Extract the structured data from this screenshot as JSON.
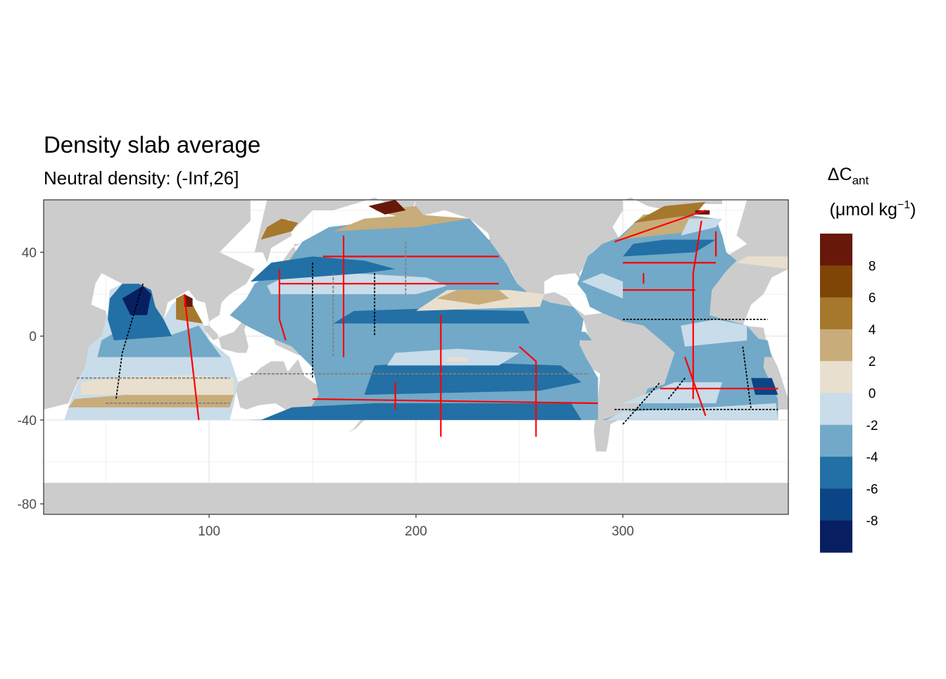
{
  "chart_data": {
    "type": "heatmap",
    "title": "Density slab average",
    "subtitle": "Neutral density: (-Inf,26]",
    "xlim": [
      20,
      380
    ],
    "ylim": [
      -85,
      65
    ],
    "x_ticks": [
      100,
      200,
      300
    ],
    "y_ticks": [
      40,
      0,
      -40,
      -80
    ],
    "grid": true,
    "colors": {
      "land": "#cccccc",
      "no_data": "#ffffff",
      "grid": "#ebebeb",
      "panel_border": "#333333",
      "track_red": "#ff0000",
      "track_black": "#000000",
      "track_grey": "#808080"
    },
    "legend": {
      "placement": "right",
      "title_main": "ΔC",
      "title_sub": "ant",
      "unit_prefix": "(μmol kg",
      "unit_exp": "−1",
      "unit_suffix": ")",
      "bins": [
        {
          "min": 8,
          "max": 10,
          "color": "#67180a"
        },
        {
          "min": 6,
          "max": 8,
          "color": "#7f4507"
        },
        {
          "min": 4,
          "max": 6,
          "color": "#a6782c"
        },
        {
          "min": 2,
          "max": 4,
          "color": "#c8ac7a"
        },
        {
          "min": 0,
          "max": 2,
          "color": "#e8dfcf"
        },
        {
          "min": -2,
          "max": 0,
          "color": "#c9dce9"
        },
        {
          "min": -4,
          "max": -2,
          "color": "#72a9c8"
        },
        {
          "min": -6,
          "max": -4,
          "color": "#2270a5"
        },
        {
          "min": -8,
          "max": -6,
          "color": "#0b4586"
        },
        {
          "min": -10,
          "max": -8,
          "color": "#071f61"
        }
      ],
      "tick_values": [
        8,
        6,
        4,
        2,
        0,
        -2,
        -4,
        -6,
        -8
      ]
    }
  }
}
